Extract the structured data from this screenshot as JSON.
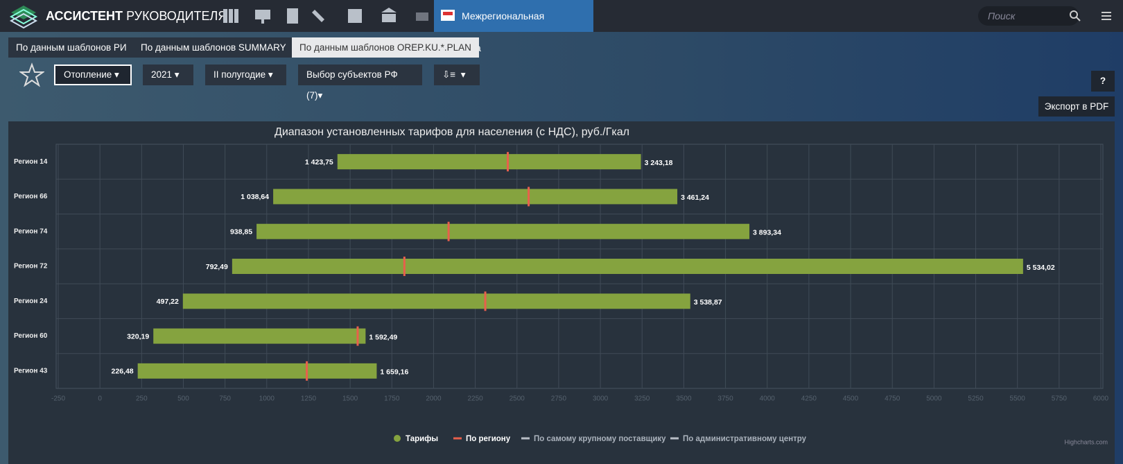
{
  "header": {
    "brand_bold": "АССИСТЕНТ",
    "brand_light": "РУКОВОДИТЕЛЯ",
    "active_tab": "Межрегиональная аналитика",
    "search_placeholder": "Поиск"
  },
  "tabs": [
    "По данным шаблонов РИ",
    "По данным шаблонов SUMMARY",
    "По данным шаблонов OREP.KU.*.PLAN"
  ],
  "filters": [
    "Отопление",
    "2021",
    "II полугодие",
    "Выбор субъектов РФ (7)"
  ],
  "help": "?",
  "export": "Экспорт в PDF",
  "credits": "Highcharts.com",
  "chart_data": {
    "type": "range_bar",
    "title": "Диапазон установленных тарифов для населения (с НДС), руб./Гкал",
    "categories": [
      "Регион 14",
      "Регион 66",
      "Регион 74",
      "Регион 72",
      "Регион 24",
      "Регион 60",
      "Регион 43"
    ],
    "series": [
      {
        "name": "Тарифы",
        "color": "#85a33f",
        "values": [
          [
            1423.75,
            3243.18
          ],
          [
            1038.64,
            3461.24
          ],
          [
            938.85,
            3893.34
          ],
          [
            792.49,
            5534.02
          ],
          [
            497.22,
            3538.87
          ],
          [
            320.19,
            1592.49
          ],
          [
            226.48,
            1659.16
          ]
        ],
        "value_labels": [
          [
            "1 423,75",
            "3 243,18"
          ],
          [
            "1 038,64",
            "3 461,24"
          ],
          [
            "938,85",
            "3 893,34"
          ],
          [
            "792,49",
            "5 534,02"
          ],
          [
            "497,22",
            "3 538,87"
          ],
          [
            "320,19",
            "1 592,49"
          ],
          [
            "226,48",
            "1 659,16"
          ]
        ]
      },
      {
        "name": "По региону",
        "color": "#e8604c",
        "values": [
          2445,
          2570,
          2090,
          1825,
          2310,
          1545,
          1240
        ]
      },
      {
        "name": "По самому крупному поставщику",
        "color": "#b8bec6",
        "values": [
          null,
          null,
          null,
          null,
          null,
          null,
          null
        ]
      },
      {
        "name": "По административному центру",
        "color": "#b8bec6",
        "values": [
          null,
          null,
          null,
          null,
          null,
          null,
          null
        ]
      }
    ],
    "xlim": [
      -250,
      6000
    ],
    "xticks": [
      -250,
      0,
      250,
      500,
      750,
      1000,
      1250,
      1500,
      1750,
      2000,
      2250,
      2500,
      2750,
      3000,
      3250,
      3500,
      3750,
      4000,
      4250,
      4500,
      4750,
      5000,
      5250,
      5500,
      5750,
      6000
    ],
    "grid": true
  }
}
